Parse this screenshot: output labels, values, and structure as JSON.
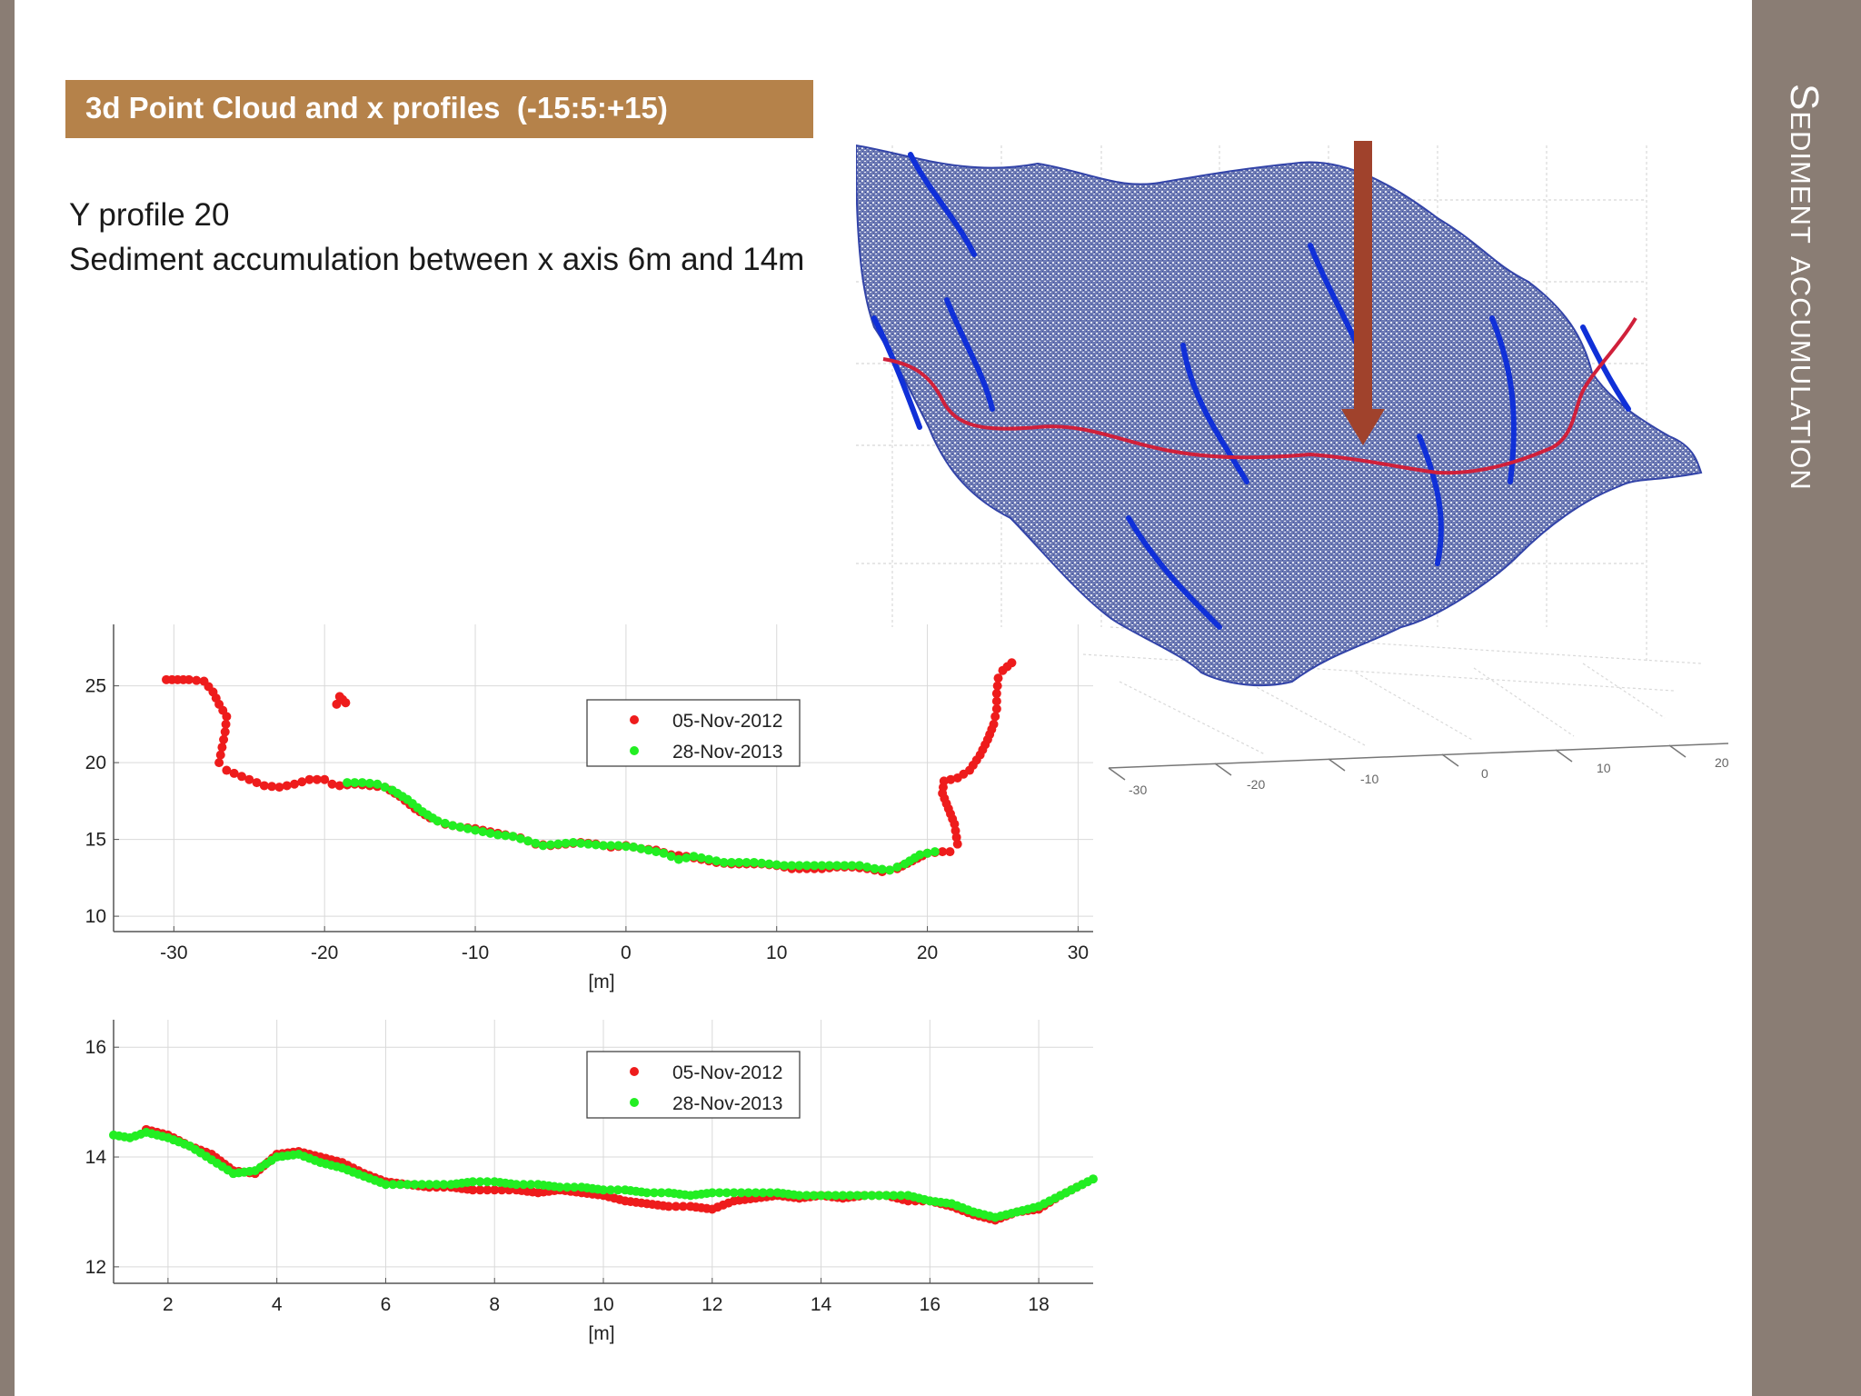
{
  "slide": {
    "vertical_title": "Sediment accumulation",
    "header": "3d Point Cloud and x profiles  (-15:5:+15)",
    "subtitle_lines": [
      "Y profile 20",
      "Sediment accumulation between x axis 6m and 14m"
    ]
  },
  "point_cloud": {
    "axis_tick_labels": [
      "-30",
      "-20",
      "-10",
      "0",
      "10",
      "20"
    ],
    "colors": {
      "cloud": "#5a6aa8",
      "channels": "#1030d8",
      "profile_line": "#d0203a",
      "arrow": "#a0422c"
    }
  },
  "colors": {
    "series_2012": "#ee1c1c",
    "series_2013": "#22ee22",
    "header_bg": "#b5824a",
    "side_band": "#8a7d74"
  },
  "chart_data": [
    {
      "type": "scatter",
      "xlabel": "[m]",
      "ylabel": "",
      "xlim": [
        -34,
        31
      ],
      "ylim": [
        9,
        29
      ],
      "xticks": [
        -30,
        -20,
        -10,
        0,
        10,
        20,
        30
      ],
      "yticks": [
        10,
        15,
        20,
        25
      ],
      "grid": true,
      "legend": "upper-center",
      "series": [
        {
          "name": "05-Nov-2012",
          "color": "#ee1c1c",
          "points": [
            [
              -30.5,
              25.4
            ],
            [
              -29,
              25.4
            ],
            [
              -28,
              25.3
            ],
            [
              -27.4,
              24.6
            ],
            [
              -27,
              23.8
            ],
            [
              -26.5,
              23
            ],
            [
              -26.6,
              22
            ],
            [
              -26.8,
              21
            ],
            [
              -27,
              20
            ],
            [
              -26.5,
              19.5
            ],
            [
              -26,
              19.3
            ],
            [
              -25,
              18.9
            ],
            [
              -24,
              18.5
            ],
            [
              -23,
              18.4
            ],
            [
              -22,
              18.6
            ],
            [
              -21,
              18.9
            ],
            [
              -20,
              18.9
            ],
            [
              -19.5,
              18.6
            ],
            [
              -19,
              18.5
            ],
            [
              -18,
              18.6
            ],
            [
              -17,
              18.5
            ],
            [
              -16,
              18.4
            ],
            [
              -15,
              17.8
            ],
            [
              -14,
              17
            ],
            [
              -13,
              16.4
            ],
            [
              -12,
              16
            ],
            [
              -11,
              15.8
            ],
            [
              -10,
              15.7
            ],
            [
              -9,
              15.5
            ],
            [
              -8,
              15.3
            ],
            [
              -7,
              15.1
            ],
            [
              -6,
              14.7
            ],
            [
              -5,
              14.6
            ],
            [
              -4,
              14.7
            ],
            [
              -3,
              14.8
            ],
            [
              -2,
              14.7
            ],
            [
              -1,
              14.5
            ],
            [
              0,
              14.6
            ],
            [
              1,
              14.4
            ],
            [
              2,
              14.3
            ],
            [
              3,
              14
            ],
            [
              4,
              13.9
            ],
            [
              5,
              13.7
            ],
            [
              6,
              13.5
            ],
            [
              7,
              13.4
            ],
            [
              8,
              13.4
            ],
            [
              9,
              13.4
            ],
            [
              10,
              13.3
            ],
            [
              11,
              13.1
            ],
            [
              12,
              13.1
            ],
            [
              13,
              13.1
            ],
            [
              14,
              13.2
            ],
            [
              15,
              13.2
            ],
            [
              16,
              13.1
            ],
            [
              17,
              12.9
            ],
            [
              18,
              13.1
            ],
            [
              19,
              13.6
            ],
            [
              20,
              14.1
            ],
            [
              21,
              14.2
            ],
            [
              21.5,
              14.2
            ],
            [
              22,
              14.7
            ],
            [
              21.8,
              16
            ],
            [
              21.4,
              17
            ],
            [
              21,
              18
            ],
            [
              21.1,
              18.8
            ],
            [
              22,
              19
            ],
            [
              22.8,
              19.5
            ],
            [
              23.5,
              20.5
            ],
            [
              24,
              21.5
            ],
            [
              24.4,
              22.5
            ],
            [
              24.6,
              23.5
            ],
            [
              24.6,
              24.5
            ],
            [
              24.7,
              25.5
            ],
            [
              25,
              26
            ],
            [
              25.6,
              26.5
            ],
            [
              -19.2,
              23.8
            ],
            [
              -18.8,
              24.1
            ],
            [
              -19,
              24.3
            ],
            [
              -18.6,
              23.9
            ]
          ]
        },
        {
          "name": "28-Nov-2013",
          "color": "#22ee22",
          "points": [
            [
              -18.5,
              18.7
            ],
            [
              -17.5,
              18.7
            ],
            [
              -16.5,
              18.6
            ],
            [
              -15.5,
              18.2
            ],
            [
              -14.5,
              17.6
            ],
            [
              -13.5,
              16.8
            ],
            [
              -12.5,
              16.2
            ],
            [
              -11.5,
              15.9
            ],
            [
              -10.5,
              15.7
            ],
            [
              -9.5,
              15.5
            ],
            [
              -8.5,
              15.3
            ],
            [
              -7.5,
              15.2
            ],
            [
              -6.5,
              14.9
            ],
            [
              -5.5,
              14.6
            ],
            [
              -4.5,
              14.7
            ],
            [
              -3.5,
              14.8
            ],
            [
              -2.5,
              14.7
            ],
            [
              -1.5,
              14.6
            ],
            [
              -0.5,
              14.6
            ],
            [
              0.5,
              14.5
            ],
            [
              1.5,
              14.3
            ],
            [
              2.5,
              14.1
            ],
            [
              3.5,
              13.7
            ],
            [
              4.5,
              13.9
            ],
            [
              5.5,
              13.7
            ],
            [
              6.5,
              13.5
            ],
            [
              7.5,
              13.5
            ],
            [
              8.5,
              13.5
            ],
            [
              9.5,
              13.4
            ],
            [
              10.5,
              13.3
            ],
            [
              11.5,
              13.3
            ],
            [
              12.5,
              13.3
            ],
            [
              13.5,
              13.3
            ],
            [
              14.5,
              13.3
            ],
            [
              15.5,
              13.3
            ],
            [
              16.5,
              13.1
            ],
            [
              17.5,
              13
            ],
            [
              18.5,
              13.4
            ],
            [
              19.5,
              14
            ],
            [
              20.5,
              14.2
            ]
          ]
        }
      ]
    },
    {
      "type": "scatter",
      "xlabel": "[m]",
      "ylabel": "",
      "xlim": [
        1,
        19
      ],
      "ylim": [
        11.7,
        16.5
      ],
      "xticks": [
        2,
        4,
        6,
        8,
        10,
        12,
        14,
        16,
        18
      ],
      "yticks": [
        12,
        14,
        16
      ],
      "grid": true,
      "legend": "upper-center",
      "series": [
        {
          "name": "05-Nov-2012",
          "color": "#ee1c1c",
          "points": [
            [
              1.6,
              14.5
            ],
            [
              2,
              14.4
            ],
            [
              2.4,
              14.2
            ],
            [
              2.8,
              14.05
            ],
            [
              3.2,
              13.75
            ],
            [
              3.6,
              13.7
            ],
            [
              4,
              14.05
            ],
            [
              4.4,
              14.1
            ],
            [
              4.8,
              14
            ],
            [
              5.2,
              13.9
            ],
            [
              5.6,
              13.7
            ],
            [
              6,
              13.55
            ],
            [
              6.4,
              13.5
            ],
            [
              6.8,
              13.45
            ],
            [
              7.2,
              13.45
            ],
            [
              7.6,
              13.4
            ],
            [
              8,
              13.4
            ],
            [
              8.4,
              13.4
            ],
            [
              8.8,
              13.35
            ],
            [
              9.2,
              13.4
            ],
            [
              9.6,
              13.35
            ],
            [
              10,
              13.3
            ],
            [
              10.4,
              13.2
            ],
            [
              10.8,
              13.15
            ],
            [
              11.2,
              13.1
            ],
            [
              11.6,
              13.1
            ],
            [
              12,
              13.05
            ],
            [
              12.4,
              13.2
            ],
            [
              12.8,
              13.25
            ],
            [
              13.2,
              13.3
            ],
            [
              13.6,
              13.25
            ],
            [
              14,
              13.3
            ],
            [
              14.4,
              13.25
            ],
            [
              14.8,
              13.3
            ],
            [
              15.2,
              13.3
            ],
            [
              15.6,
              13.2
            ],
            [
              16,
              13.2
            ],
            [
              16.4,
              13.1
            ],
            [
              16.8,
              12.95
            ],
            [
              17.2,
              12.85
            ],
            [
              17.6,
              13
            ],
            [
              18,
              13.05
            ],
            [
              18.4,
              13.3
            ],
            [
              18.8,
              13.5
            ]
          ]
        },
        {
          "name": "28-Nov-2013",
          "color": "#22ee22",
          "points": [
            [
              1,
              14.4
            ],
            [
              1.3,
              14.35
            ],
            [
              1.6,
              14.45
            ],
            [
              2,
              14.35
            ],
            [
              2.4,
              14.2
            ],
            [
              2.8,
              13.95
            ],
            [
              3.2,
              13.7
            ],
            [
              3.6,
              13.75
            ],
            [
              4,
              14
            ],
            [
              4.4,
              14.05
            ],
            [
              4.8,
              13.9
            ],
            [
              5.2,
              13.8
            ],
            [
              5.6,
              13.65
            ],
            [
              6,
              13.5
            ],
            [
              6.4,
              13.5
            ],
            [
              6.8,
              13.5
            ],
            [
              7.2,
              13.5
            ],
            [
              7.6,
              13.55
            ],
            [
              8,
              13.55
            ],
            [
              8.4,
              13.5
            ],
            [
              8.8,
              13.5
            ],
            [
              9.2,
              13.45
            ],
            [
              9.6,
              13.45
            ],
            [
              10,
              13.4
            ],
            [
              10.4,
              13.4
            ],
            [
              10.8,
              13.35
            ],
            [
              11.2,
              13.35
            ],
            [
              11.6,
              13.3
            ],
            [
              12,
              13.35
            ],
            [
              12.4,
              13.35
            ],
            [
              12.8,
              13.35
            ],
            [
              13.2,
              13.35
            ],
            [
              13.6,
              13.3
            ],
            [
              14,
              13.3
            ],
            [
              14.4,
              13.3
            ],
            [
              14.8,
              13.3
            ],
            [
              15.2,
              13.3
            ],
            [
              15.6,
              13.3
            ],
            [
              16,
              13.2
            ],
            [
              16.4,
              13.15
            ],
            [
              16.8,
              13
            ],
            [
              17.2,
              12.9
            ],
            [
              17.6,
              13
            ],
            [
              18,
              13.1
            ],
            [
              18.4,
              13.3
            ],
            [
              18.8,
              13.5
            ],
            [
              19,
              13.6
            ]
          ]
        }
      ]
    }
  ]
}
